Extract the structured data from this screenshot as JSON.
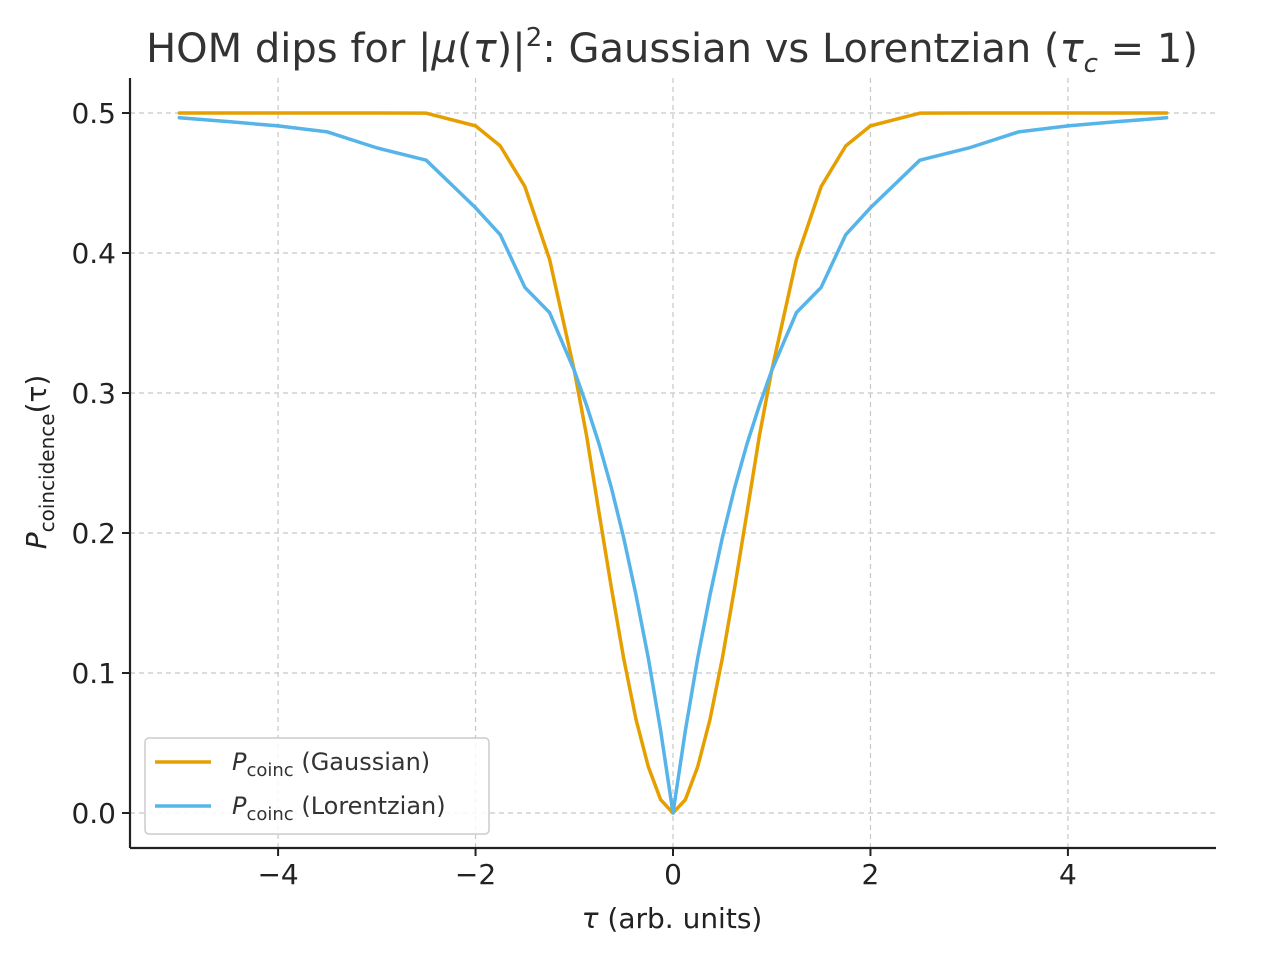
{
  "chart_data": {
    "type": "line",
    "title": {
      "prefix": "HOM dips for |",
      "mu": "μ",
      "open": "(",
      "tau": "τ",
      "close": ")|",
      "sup": "2",
      "mid": ": Gaussian vs Lorentzian (",
      "tau_c": "τ",
      "sub_c": "c",
      "eq": " = 1)"
    },
    "xlabel": {
      "symbol": "τ",
      "text": " (arb. units)"
    },
    "ylabel": {
      "symbol": "P",
      "sub": "coincidence",
      "arg": "(τ)"
    },
    "xlim": [
      -5.5,
      5.5
    ],
    "ylim": [
      -0.025,
      0.525
    ],
    "x_ticks": [
      {
        "value": -4,
        "label": "−4"
      },
      {
        "value": -2,
        "label": "−2"
      },
      {
        "value": 0,
        "label": "0"
      },
      {
        "value": 2,
        "label": "2"
      },
      {
        "value": 4,
        "label": "4"
      }
    ],
    "y_ticks": [
      {
        "value": 0.0,
        "label": "0.0"
      },
      {
        "value": 0.1,
        "label": "0.1"
      },
      {
        "value": 0.2,
        "label": "0.2"
      },
      {
        "value": 0.3,
        "label": "0.3"
      },
      {
        "value": 0.4,
        "label": "0.4"
      },
      {
        "value": 0.5,
        "label": "0.5"
      }
    ],
    "grid": true,
    "legend_position": "lower-left",
    "x": [
      -5.0,
      -4.5,
      -4.0,
      -3.5,
      -3.0,
      -2.5,
      -2.0,
      -1.75,
      -1.5,
      -1.25,
      -1.0,
      -0.875,
      -0.75,
      -0.625,
      -0.5,
      -0.375,
      -0.25,
      -0.125,
      0.0,
      0.125,
      0.25,
      0.375,
      0.5,
      0.625,
      0.75,
      0.875,
      1.0,
      1.25,
      1.5,
      1.75,
      2.0,
      2.5,
      3.0,
      3.5,
      4.0,
      4.5,
      5.0
    ],
    "series": [
      {
        "name": "Gaussian",
        "label_symbol": "P",
        "label_sub": "coinc",
        "label_text": " (Gaussian)",
        "color": "#E69F00",
        "values": [
          0.5,
          0.5,
          0.5,
          0.5,
          0.5,
          0.4999,
          0.4908,
          0.4765,
          0.4474,
          0.3954,
          0.3161,
          0.2694,
          0.2149,
          0.1612,
          0.1106,
          0.0669,
          0.033,
          0.0095,
          0.0,
          0.0095,
          0.033,
          0.0669,
          0.1106,
          0.1612,
          0.2149,
          0.2694,
          0.3161,
          0.3954,
          0.4474,
          0.4765,
          0.4908,
          0.4999,
          0.5,
          0.5,
          0.5,
          0.5,
          0.5
        ]
      },
      {
        "name": "Lorentzian",
        "label_symbol": "P",
        "label_sub": "coinc",
        "label_text": " (Lorentzian)",
        "color": "#56B4E9",
        "values": [
          0.4966,
          0.4938,
          0.4908,
          0.4865,
          0.4751,
          0.4663,
          0.4323,
          0.4131,
          0.3754,
          0.3574,
          0.3161,
          0.2911,
          0.2638,
          0.2325,
          0.1967,
          0.1558,
          0.1106,
          0.0588,
          0.0,
          0.0588,
          0.1106,
          0.1558,
          0.1967,
          0.2325,
          0.2638,
          0.2911,
          0.3161,
          0.3574,
          0.3754,
          0.4131,
          0.4323,
          0.4663,
          0.4751,
          0.4865,
          0.4908,
          0.4938,
          0.4966
        ]
      }
    ]
  }
}
